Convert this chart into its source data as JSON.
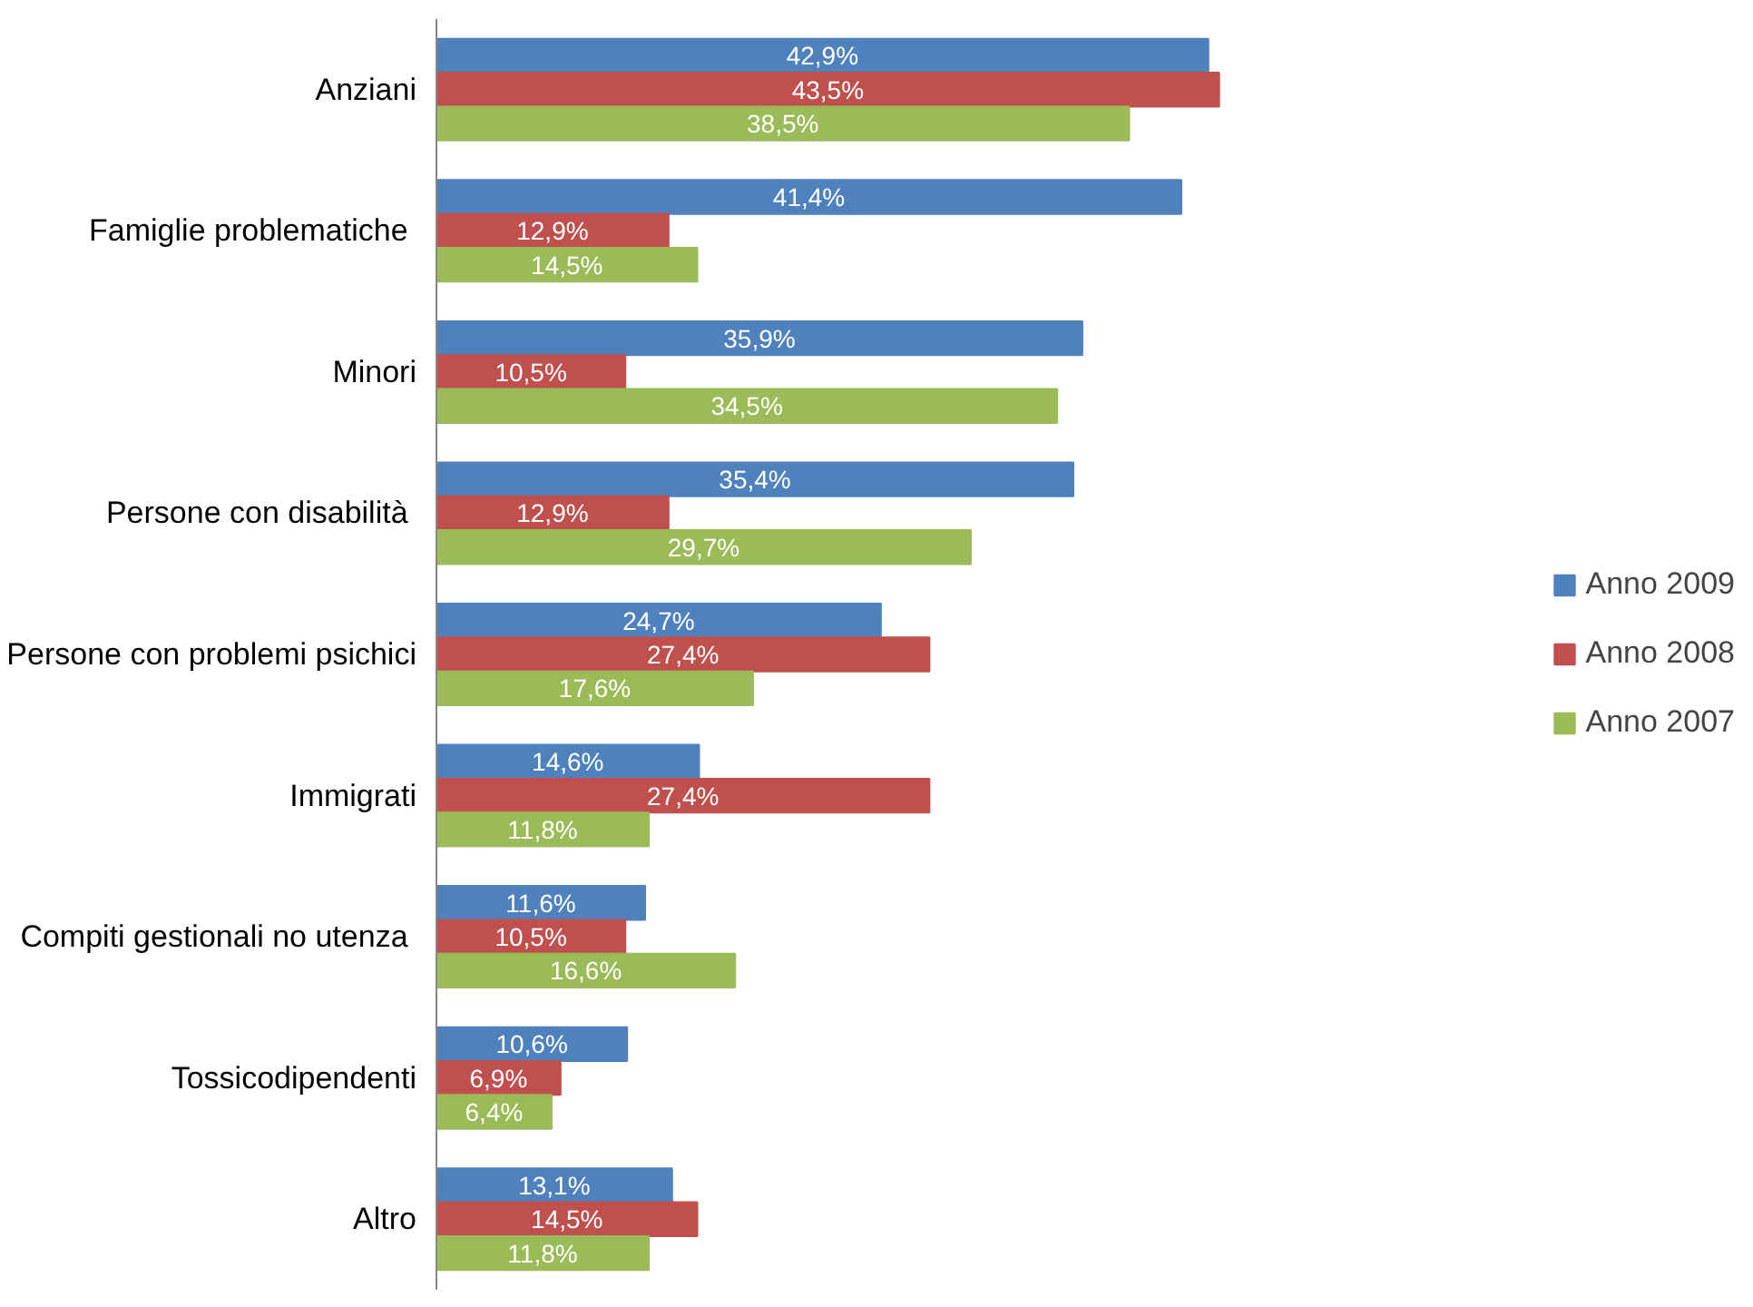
{
  "chart_data": {
    "type": "bar",
    "orientation": "horizontal",
    "legend": "right",
    "grid": false,
    "categories": [
      "Anziani",
      "Famiglie  problematiche",
      "Minori",
      "Persone  con disabilità",
      "Persone con problemi psichici",
      "Immigrati",
      "Compiti gestionali  no utenza",
      "Tossicodipendenti",
      "Altro"
    ],
    "series": [
      {
        "name": "Anno 2009",
        "color": "#4f81bd",
        "values": [
          42.9,
          41.4,
          35.9,
          35.4,
          24.7,
          14.6,
          11.6,
          10.6,
          13.1
        ],
        "value_labels": [
          "42,9%",
          "41,4%",
          "35,9%",
          "35,4%",
          "24,7%",
          "14,6%",
          "11,6%",
          "10,6%",
          "13,1%"
        ]
      },
      {
        "name": "Anno 2008",
        "color": "#c0504d",
        "values": [
          43.5,
          12.9,
          10.5,
          12.9,
          27.4,
          27.4,
          10.5,
          6.9,
          14.5
        ],
        "value_labels": [
          "43,5%",
          "12,9%",
          "10,5%",
          "12,9%",
          "27,4%",
          "27,4%",
          "10,5%",
          "6,9%",
          "14,5%"
        ]
      },
      {
        "name": "Anno 2007",
        "color": "#9bbb59",
        "values": [
          38.5,
          14.5,
          34.5,
          29.7,
          17.6,
          11.8,
          16.6,
          6.4,
          11.8
        ],
        "value_labels": [
          "38,5%",
          "14,5%",
          "34,5%",
          "29,7%",
          "17,6%",
          "11,8%",
          "16,6%",
          "6,4%",
          "11,8%"
        ]
      }
    ]
  }
}
